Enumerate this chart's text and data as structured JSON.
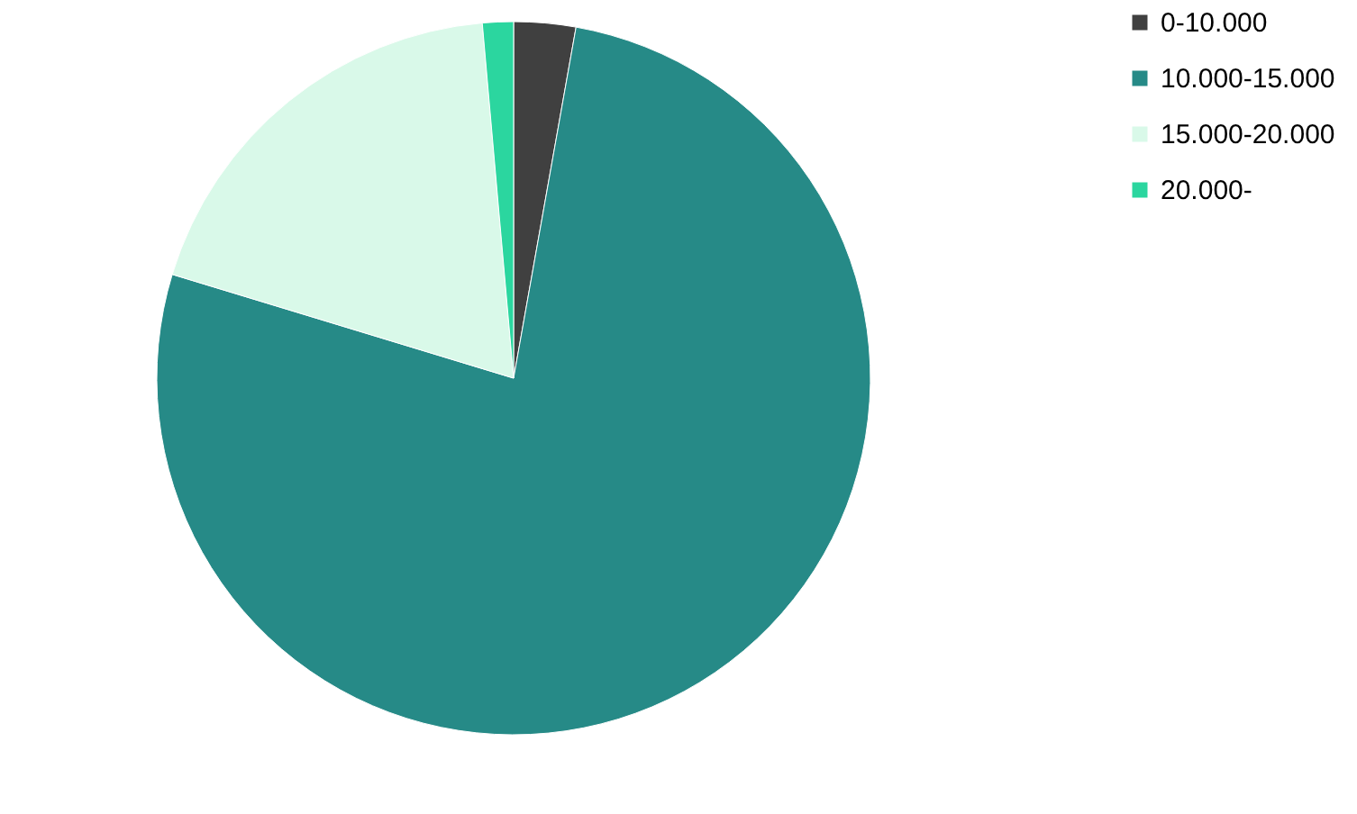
{
  "chart_data": {
    "type": "pie",
    "categories": [
      "0-10.000",
      "10.000-15.000",
      "15.000-20.000",
      "20.000-"
    ],
    "values": [
      2.8,
      76.9,
      18.9,
      1.4
    ],
    "colors": [
      "#404040",
      "#268a87",
      "#d9f9e9",
      "#2bd69f"
    ],
    "legend": "right"
  }
}
